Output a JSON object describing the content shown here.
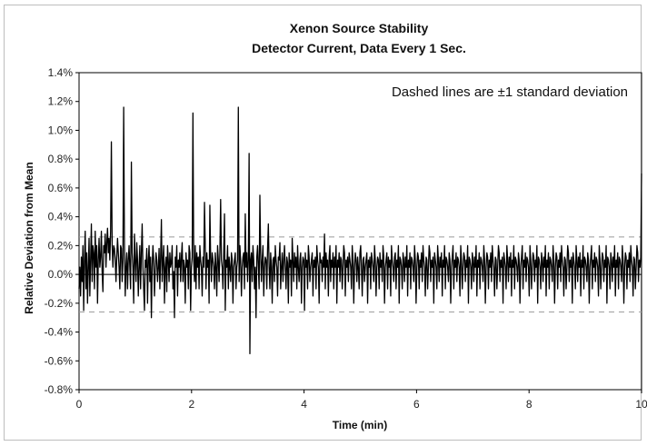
{
  "chart_data": {
    "type": "line",
    "title_lines": [
      "Xenon Source Stability",
      "Detector Current, Data Every 1 Sec."
    ],
    "xlabel": "Time (min)",
    "ylabel": "Relative Deviation from Mean",
    "xlim": [
      0,
      10
    ],
    "ylim": [
      -0.8,
      1.4
    ],
    "x_ticks": [
      "0",
      "2",
      "4",
      "6",
      "8",
      "10"
    ],
    "y_ticks": [
      "-0.8%",
      "-0.6%",
      "-0.4%",
      "-0.2%",
      "0.0%",
      "0.2%",
      "0.4%",
      "0.6%",
      "0.8%",
      "1.0%",
      "1.2%",
      "1.4%"
    ],
    "annotation": "Dashed lines are ±1 standard deviation",
    "mean_line": 0.0,
    "std_dev_lines": [
      0.26,
      -0.26
    ],
    "sample_interval_sec": 1,
    "series": [
      {
        "values": [
          -0.1,
          0.05,
          -0.15,
          0.12,
          -0.05,
          0.2,
          -0.25,
          0.1,
          0.3,
          -0.1,
          0.15,
          -0.2,
          0.05,
          0.25,
          -0.15,
          0.1,
          0.35,
          -0.05,
          0.2,
          0.15,
          -0.1,
          0.3,
          0.05,
          0.2,
          -0.2,
          0.1,
          0.25,
          0.05,
          0.12,
          0.3,
          0.02,
          -0.12,
          0.2,
          0.15,
          0.28,
          0.05,
          0.22,
          0.32,
          0.15,
          0.25,
          0.1,
          0.3,
          0.92,
          0.2,
          0.05,
          0.2,
          0.18,
          0.1,
          -0.05,
          0.12,
          0.25,
          0.15,
          0.05,
          -0.1,
          0.2,
          0.18,
          -0.05,
          0.1,
          1.16,
          0.2,
          -0.15,
          0.05,
          0.15,
          -0.1,
          0.1,
          0.2,
          0.05,
          -0.1,
          0.78,
          0.15,
          0.05,
          -0.2,
          0.28,
          0.1,
          -0.05,
          0.22,
          0.1,
          -0.15,
          0.05,
          0.2,
          -0.1,
          0.15,
          0.35,
          0.05,
          -0.1,
          -0.25,
          0.1,
          0.05,
          0.18,
          -0.2,
          0.1,
          0.2,
          -0.05,
          0.12,
          -0.3,
          0.05,
          0.2,
          0.1,
          -0.15,
          0.02,
          0.15,
          0.1,
          -0.05,
          0.05,
          0.18,
          -0.1,
          0.12,
          0.38,
          -0.05,
          0.1,
          0.2,
          -0.2,
          0.05,
          0.12,
          -0.12,
          0.2,
          0.1,
          -0.05,
          0.15,
          0.05,
          0.08,
          0.2,
          -0.1,
          0.02,
          -0.3,
          0.12,
          0.05,
          0.2,
          -0.15,
          0.1,
          0.05,
          0.15,
          -0.05,
          0.12,
          0.22,
          -0.05,
          0.1,
          0.05,
          -0.2,
          0.15,
          0.05,
          0.1,
          -0.1,
          0.2,
          0.15,
          -0.25,
          0.05,
          0.12,
          1.12,
          0.1,
          -0.05,
          0.2,
          -0.1,
          0.15,
          0.05,
          0.12,
          -0.1,
          0.2,
          0.1,
          0.05,
          -0.15,
          0.12,
          0.05,
          0.5,
          0.2,
          -0.1,
          0.15,
          0.05,
          0.1,
          -0.2,
          0.48,
          0.12,
          -0.05,
          0.15,
          0.1,
          0.05,
          -0.1,
          0.15,
          0.05,
          -0.15,
          0.2,
          0.1,
          -0.05,
          0.15,
          0.52,
          0.1,
          0.05,
          -0.1,
          0.15,
          0.42,
          -0.25,
          0.1,
          0.05,
          0.2,
          -0.1,
          0.12,
          0.05,
          -0.05,
          0.15,
          0.1,
          -0.2,
          0.05,
          0.1,
          0.15,
          -0.1,
          0.05,
          0.1,
          1.16,
          -0.05,
          0.2,
          0.1,
          -0.15,
          0.05,
          0.12,
          0.15,
          -0.1,
          0.42,
          0.05,
          0.15,
          -0.05,
          0.1,
          0.84,
          -0.55,
          0.1,
          0.15,
          -0.05,
          0.2,
          0.1,
          -0.1,
          0.05,
          -0.3,
          0.12,
          0.2,
          0.05,
          -0.1,
          0.55,
          0.15,
          -0.05,
          0.1,
          0.2,
          -0.15,
          0.05,
          0.12,
          0.1,
          -0.1,
          0.18,
          0.35,
          0.05,
          -0.1,
          0.15,
          0.05,
          -0.2,
          0.1,
          0.12,
          -0.05,
          0.2,
          0.1,
          0.05,
          -0.15,
          0.12,
          0.1,
          0.22,
          -0.1,
          0.05,
          0.15,
          -0.05,
          0.1,
          0.2,
          0.05,
          -0.1,
          0.12,
          0.08,
          -0.2,
          0.15,
          0.05,
          0.1,
          -0.15,
          0.25,
          0.1,
          -0.05,
          0.15,
          0.05,
          0.12,
          -0.1,
          0.2,
          0.05,
          -0.05,
          0.1,
          0.15,
          -0.2,
          0.05,
          0.12,
          0.1,
          -0.25,
          0.15,
          0.05,
          0.1,
          -0.1,
          0.2,
          0.12,
          -0.05,
          0.05,
          0.1,
          0.15,
          -0.15,
          0.1,
          0.05,
          0.12,
          -0.1,
          0.2,
          0.1,
          0.05,
          -0.2,
          0.15,
          0.08,
          0.1,
          -0.05,
          0.12,
          0.05,
          0.28,
          -0.1,
          0.15,
          0.05,
          0.1,
          -0.15,
          0.12,
          0.2,
          -0.05,
          0.1,
          0.05,
          0.15,
          -0.1,
          0.12,
          0.05,
          0.2,
          -0.2,
          0.1,
          0.05,
          0.15,
          -0.05,
          0.12,
          0.1,
          -0.1,
          0.05,
          0.2,
          0.15,
          -0.15,
          0.1,
          0.05,
          0.12,
          -0.05,
          0.15,
          0.1,
          0.05,
          -0.1,
          0.2,
          0.1,
          -0.2,
          0.05,
          0.15,
          0.1,
          -0.05,
          0.12,
          0.05,
          -0.1,
          0.15,
          0.2,
          0.05,
          -0.15,
          0.1,
          0.12,
          -0.05,
          0.05,
          0.1,
          0.15,
          -0.2,
          0.1,
          0.05,
          0.12,
          -0.1,
          0.15,
          0.1,
          0.05,
          -0.05,
          0.2,
          0.1,
          -0.15,
          0.05,
          0.12,
          0.1,
          -0.1,
          0.15,
          0.05,
          0.1,
          -0.05,
          0.2,
          0.12,
          -0.2,
          0.05,
          0.1,
          0.15,
          -0.1,
          0.12,
          0.05,
          0.1,
          -0.15,
          0.2,
          0.1,
          0.05,
          -0.05,
          0.12,
          0.15,
          -0.1,
          0.1,
          0.05,
          0.2,
          -0.2,
          0.12,
          0.1,
          0.05,
          -0.1,
          0.15,
          0.1,
          -0.05,
          0.12,
          0.05,
          0.2,
          -0.15,
          0.1,
          0.05,
          0.15,
          -0.1,
          0.12,
          0.1,
          0.05,
          -0.05,
          0.2,
          0.1,
          -0.2,
          0.05,
          0.15,
          0.12,
          -0.1,
          0.1,
          0.05,
          0.15,
          -0.05,
          0.2,
          0.1,
          0.05,
          -0.15,
          0.12,
          0.1,
          -0.1,
          0.05,
          0.2,
          0.15,
          -0.05,
          0.1,
          0.05,
          0.12,
          -0.2,
          0.15,
          0.1,
          0.05,
          -0.1,
          0.2,
          0.1,
          -0.05,
          0.12,
          0.05,
          0.15,
          -0.15,
          0.1,
          0.05,
          0.2,
          -0.1,
          0.12,
          0.1,
          0.05,
          -0.05,
          0.15,
          0.1,
          -0.2,
          0.05,
          0.12,
          0.2,
          -0.1,
          0.1,
          0.05,
          0.15,
          -0.05,
          0.12,
          0.1,
          0.05,
          -0.15,
          0.2,
          0.1,
          -0.1,
          0.05,
          0.15,
          0.12,
          -0.05,
          0.1,
          0.05,
          0.2,
          -0.2,
          0.12,
          0.1,
          0.05,
          -0.1,
          0.15,
          0.1,
          -0.05,
          0.12,
          0.05,
          0.2,
          -0.15,
          0.1,
          0.05,
          0.15,
          -0.1,
          0.12,
          0.1,
          0.05,
          -0.05,
          0.2,
          0.1,
          -0.2,
          0.05,
          0.15,
          0.12,
          -0.1,
          0.1,
          0.05,
          0.15,
          -0.05,
          0.2,
          0.1,
          0.05,
          -0.15,
          0.12,
          0.1,
          -0.1,
          0.05,
          0.2,
          0.15,
          -0.05,
          0.1,
          0.05,
          0.12,
          -0.2,
          0.15,
          0.1,
          0.05,
          -0.1,
          0.2,
          0.1,
          -0.05,
          0.12,
          0.05,
          0.15,
          -0.15,
          0.1,
          0.05,
          0.2,
          -0.1,
          0.12,
          0.1,
          0.05,
          -0.05,
          0.15,
          0.1,
          -0.2,
          0.05,
          0.12,
          0.2,
          -0.1,
          0.1,
          0.05,
          0.15,
          -0.05,
          0.12,
          0.1,
          0.05,
          -0.15,
          0.2,
          0.1,
          -0.1,
          0.05,
          0.15,
          0.12,
          -0.05,
          0.1,
          0.05,
          0.2,
          -0.2,
          0.12,
          0.1,
          0.05,
          -0.1,
          0.15,
          0.1,
          -0.05,
          0.12,
          0.05,
          0.2,
          -0.15,
          0.1,
          0.05,
          0.15,
          -0.1,
          0.12,
          0.1,
          0.05,
          -0.05,
          0.2,
          0.1,
          -0.2,
          0.05,
          0.15,
          0.12,
          -0.1,
          0.1,
          0.05,
          0.15,
          -0.05,
          0.2,
          0.1,
          0.05,
          -0.15,
          0.12,
          0.1,
          -0.1,
          0.05,
          0.2,
          0.15,
          -0.05,
          0.1,
          0.05,
          0.12,
          -0.2,
          0.15,
          0.1,
          0.05,
          -0.1,
          0.2,
          0.1,
          -0.05,
          0.12,
          0.05,
          0.15,
          -0.15,
          0.1,
          0.05,
          0.2,
          -0.1,
          0.12,
          0.1,
          0.05,
          -0.05,
          0.15,
          0.1,
          -0.2,
          0.05,
          0.12,
          0.2,
          -0.1,
          0.1,
          0.05,
          0.15,
          -0.05,
          0.12,
          0.1,
          0.05,
          -0.15,
          0.2,
          0.1,
          -0.1,
          0.05,
          0.15,
          0.12,
          -0.05,
          0.1,
          0.05,
          0.2,
          -0.2,
          0.12,
          0.1,
          0.05,
          -0.1,
          0.15,
          0.1,
          -0.05,
          0.12,
          0.05,
          0.2,
          -0.15,
          0.1,
          0.05,
          0.15,
          -0.1,
          0.12,
          0.1,
          0.05,
          -0.05,
          0.2,
          0.1,
          -0.2,
          0.05,
          0.15,
          0.12,
          -0.1,
          0.1,
          0.05,
          0.15,
          -0.05,
          0.2,
          0.1,
          0.05,
          -0.15,
          0.12,
          0.1,
          -0.1,
          0.05,
          0.2,
          0.15,
          -0.05,
          0.1,
          0.05,
          0.12,
          0.7
        ]
      }
    ]
  }
}
